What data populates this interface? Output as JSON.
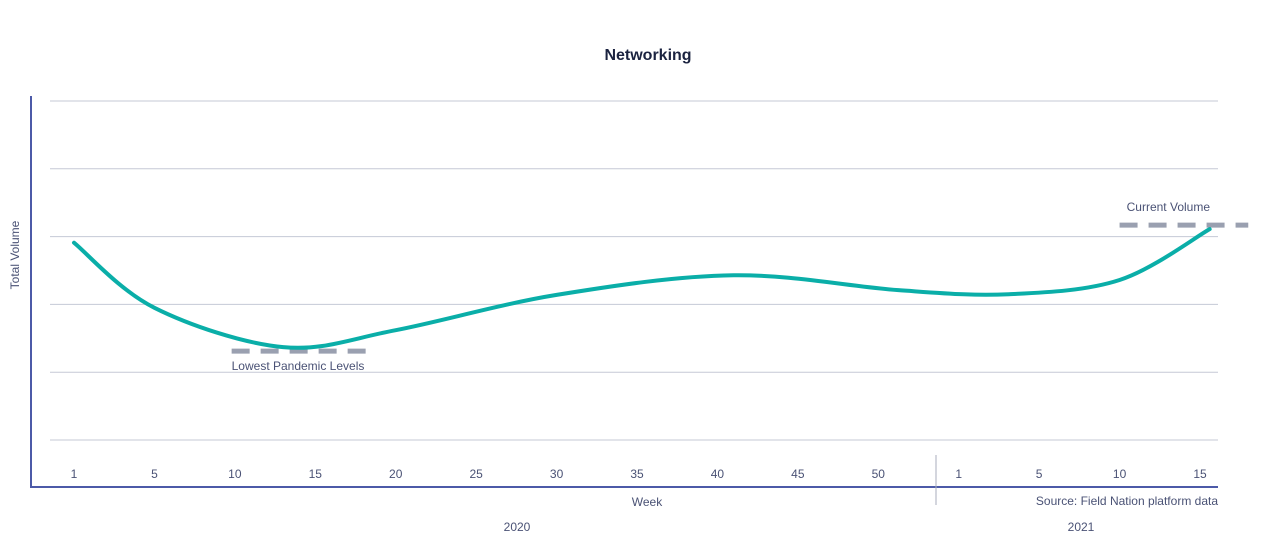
{
  "chart_data": {
    "type": "line",
    "title": "Networking",
    "xlabel": "Week",
    "ylabel": "Total Volume",
    "source": "Source: Field Nation platform data",
    "year_groups": [
      {
        "label": "2020",
        "ticks": [
          1,
          5,
          10,
          15,
          20,
          25,
          30,
          35,
          40,
          45,
          50
        ]
      },
      {
        "label": "2021",
        "ticks": [
          1,
          5,
          10,
          15
        ]
      }
    ],
    "y_tick_labels_shown": false,
    "grid": true,
    "ylim": [
      0,
      5
    ],
    "series": [
      {
        "color": "#0aaea8",
        "points": [
          {
            "year": 2020,
            "week": 1,
            "y": 2.91
          },
          {
            "year": 2020,
            "week": 5,
            "y": 1.95
          },
          {
            "year": 2020,
            "week": 13,
            "y": 1.37
          },
          {
            "year": 2020,
            "week": 20,
            "y": 1.62
          },
          {
            "year": 2020,
            "week": 30,
            "y": 2.14
          },
          {
            "year": 2020,
            "week": 41,
            "y": 2.43
          },
          {
            "year": 2020,
            "week": 51,
            "y": 2.21
          },
          {
            "year": 2021,
            "week": 3.5,
            "y": 2.15
          },
          {
            "year": 2021,
            "week": 10,
            "y": 2.36
          },
          {
            "year": 2021,
            "week": 15.6,
            "y": 3.11
          }
        ]
      }
    ],
    "annotations": [
      {
        "text": "Lowest Pandemic Levels",
        "y": 1.31,
        "from": {
          "year": 2020,
          "week": 9.8
        },
        "to": {
          "year": 2020,
          "week": 18.5
        },
        "color": "#9aa0b0"
      },
      {
        "text": "Current Volume",
        "y": 3.17,
        "from": {
          "year": 2021,
          "week": 10
        },
        "to": {
          "year": 2021,
          "week": 18
        },
        "color": "#9aa0b0"
      }
    ],
    "colors": {
      "axis": "#4c5aa8",
      "grid": "#c5c9d6",
      "text": "#4a5275"
    }
  }
}
